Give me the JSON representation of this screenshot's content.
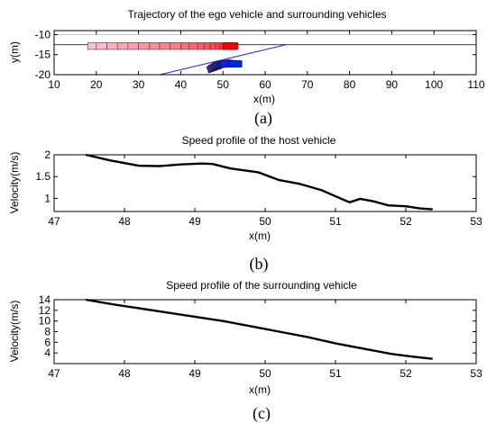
{
  "chart_data": [
    {
      "type": "line",
      "title": "Trajectory of the ego vehicle and surrounding vehicles",
      "xlabel": "x(m)",
      "ylabel": "y(m)",
      "xlim": [
        10,
        110
      ],
      "ylim": [
        -20,
        -9
      ],
      "xticks": [
        10,
        20,
        30,
        40,
        50,
        60,
        70,
        80,
        90,
        100,
        110
      ],
      "yticks": [
        -10,
        -15,
        -20
      ],
      "caption": "(a)",
      "lane_lines": [
        {
          "y": -10,
          "color": "#c8c8c8"
        },
        {
          "y": -12.5,
          "color": "#2a2ad8"
        }
      ],
      "merge_line": {
        "x": [
          35,
          65
        ],
        "y": [
          -20,
          -12.5
        ],
        "color": "#2a2ad8"
      },
      "series": [
        {
          "color_start": "#f2c6d6",
          "color_end": "#ff0000",
          "x_from": 18,
          "x_to": 53,
          "y_top": -12,
          "y_bottom": -13.7,
          "box_width": 3,
          "box_x": [
            18,
            20,
            22.5,
            25,
            27.5,
            30,
            32.5,
            35,
            37.5,
            40,
            42,
            44,
            45.5,
            47,
            48.2,
            49.2,
            50,
            50.7,
            51.3,
            51.9,
            52.4,
            53
          ]
        },
        {
          "color_start": "#5a5a70",
          "color_end": "#0022ff",
          "box_x": [
            47.8,
            48.0,
            48.2,
            48.4,
            48.6,
            48.8,
            49.0,
            49.2,
            49.4,
            49.6,
            49.8,
            50.0,
            50.2,
            50.4,
            50.6,
            50.8,
            51.0,
            51.5,
            52.0,
            52.5,
            53.0
          ],
          "box_y": [
            -18.3,
            -18.2,
            -18.0,
            -17.9,
            -17.8,
            -17.7,
            -17.6,
            -17.5,
            -17.5,
            -17.4,
            -17.4,
            -17.3,
            -17.3,
            -17.3,
            -17.3,
            -17.3,
            -17.3,
            -17.3,
            -17.3,
            -17.3,
            -17.3
          ],
          "box_width": 3,
          "box_height": 1.6
        }
      ]
    },
    {
      "type": "line",
      "title": "Speed profile of the host vehicle",
      "xlabel": "x(m)",
      "ylabel": "Velocity(m/s)",
      "xlim": [
        47,
        53
      ],
      "ylim": [
        0.7,
        2.0
      ],
      "xticks": [
        47,
        48,
        49,
        50,
        51,
        52,
        53
      ],
      "yticks": [
        1,
        1.5,
        2
      ],
      "caption": "(b)",
      "series": [
        {
          "x": [
            47.45,
            47.8,
            48.2,
            48.5,
            48.8,
            49.1,
            49.25,
            49.5,
            49.9,
            50.2,
            50.5,
            50.8,
            51.0,
            51.2,
            51.35,
            51.55,
            51.75,
            52.0,
            52.2,
            52.38
          ],
          "y": [
            2.0,
            1.87,
            1.75,
            1.74,
            1.78,
            1.8,
            1.79,
            1.69,
            1.6,
            1.42,
            1.33,
            1.19,
            1.05,
            0.91,
            0.99,
            0.93,
            0.84,
            0.82,
            0.77,
            0.75
          ]
        }
      ]
    },
    {
      "type": "line",
      "title": "Speed profile of the surrounding vehicle",
      "xlabel": "x(m)",
      "ylabel": "Velocity(m/s)",
      "xlim": [
        47,
        53
      ],
      "ylim": [
        2,
        14
      ],
      "xticks": [
        47,
        48,
        49,
        50,
        51,
        52,
        53
      ],
      "yticks": [
        4,
        6,
        8,
        10,
        12,
        14
      ],
      "caption": "(c)",
      "series": [
        {
          "x": [
            47.45,
            47.8,
            48.2,
            48.6,
            49.0,
            49.4,
            49.8,
            50.2,
            50.6,
            51.0,
            51.4,
            51.8,
            52.1,
            52.38
          ],
          "y": [
            14.0,
            13.2,
            12.4,
            11.6,
            10.8,
            10.0,
            9.0,
            8.0,
            7.0,
            5.8,
            4.8,
            3.8,
            3.3,
            2.9
          ]
        }
      ]
    }
  ]
}
